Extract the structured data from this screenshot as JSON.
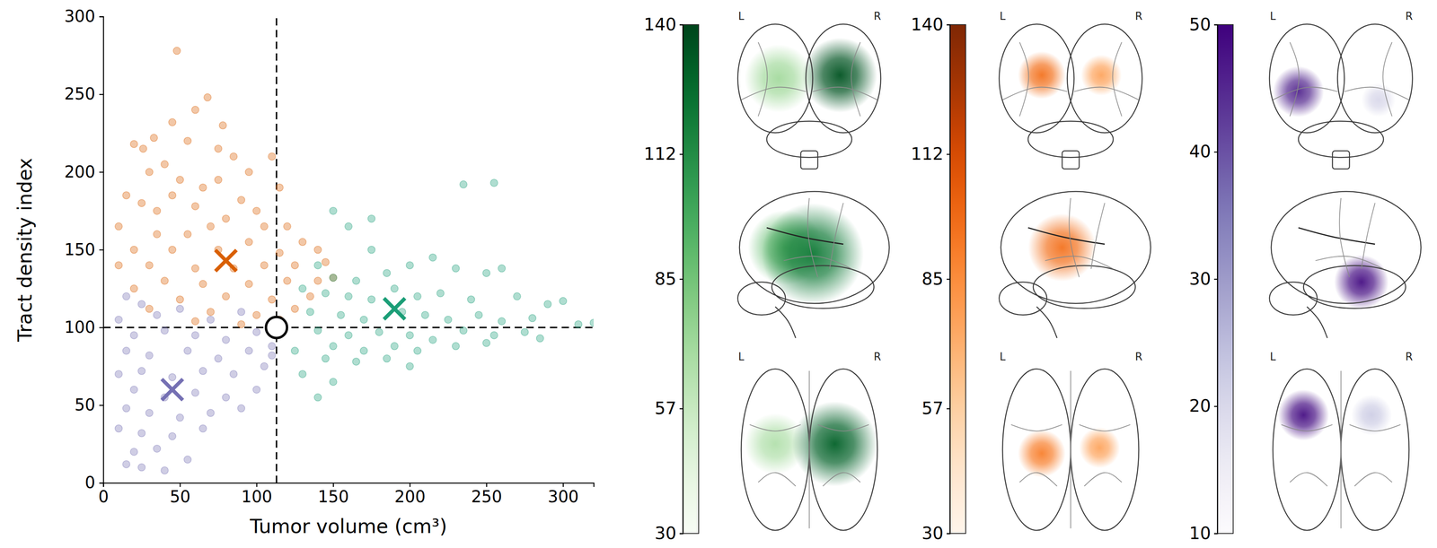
{
  "chart_data": [
    {
      "type": "scatter",
      "x_label": "Tumor volume (cm³)",
      "y_label": "Tract density index",
      "xlim": [
        0,
        320
      ],
      "xticks": [
        0,
        50,
        100,
        150,
        200,
        250,
        300
      ],
      "ylim": [
        0,
        300
      ],
      "yticks": [
        0,
        50,
        100,
        150,
        200,
        250,
        300
      ],
      "grid": false,
      "series": [
        {
          "color": "#d95f02",
          "marker": "circle",
          "x": [
            48,
            68,
            60,
            45,
            33,
            20,
            26,
            55,
            78,
            75,
            85,
            40,
            30,
            50,
            65,
            45,
            15,
            25,
            60,
            90,
            100,
            80,
            70,
            105,
            110,
            115,
            120,
            10,
            35,
            55,
            95,
            130,
            20,
            45,
            75,
            115,
            140,
            10,
            30,
            60,
            85,
            105,
            125,
            145,
            40,
            65,
            95,
            120,
            20,
            50,
            80,
            110,
            135,
            30,
            70,
            100,
            125,
            60,
            90,
            115,
            140,
            150,
            75,
            95,
            35
          ],
          "values": [
            278,
            248,
            240,
            232,
            222,
            218,
            215,
            220,
            230,
            215,
            210,
            205,
            200,
            195,
            190,
            185,
            185,
            180,
            178,
            182,
            175,
            170,
            165,
            165,
            210,
            190,
            165,
            165,
            160,
            160,
            155,
            155,
            150,
            150,
            150,
            148,
            150,
            140,
            140,
            138,
            138,
            140,
            140,
            142,
            130,
            128,
            128,
            130,
            125,
            118,
            120,
            118,
            120,
            112,
            110,
            108,
            112,
            104,
            102,
            105,
            130,
            132,
            195,
            200,
            175
          ]
        },
        {
          "color": "#1b9e77",
          "marker": "circle",
          "x": [
            150,
            235,
            255,
            160,
            175,
            140,
            150,
            165,
            185,
            200,
            215,
            230,
            250,
            260,
            130,
            145,
            160,
            175,
            190,
            205,
            220,
            240,
            270,
            290,
            300,
            135,
            155,
            170,
            195,
            210,
            225,
            245,
            260,
            280,
            310,
            320,
            140,
            160,
            180,
            200,
            215,
            235,
            255,
            275,
            285,
            150,
            170,
            190,
            205,
            230,
            250,
            145,
            165,
            185,
            200,
            130,
            150,
            140,
            125,
            175
          ],
          "values": [
            175,
            192,
            193,
            165,
            150,
            140,
            132,
            130,
            135,
            140,
            145,
            138,
            135,
            138,
            125,
            122,
            120,
            118,
            125,
            120,
            122,
            118,
            120,
            115,
            117,
            110,
            108,
            105,
            110,
            108,
            105,
            108,
            104,
            106,
            102,
            103,
            98,
            95,
            97,
            95,
            92,
            98,
            95,
            97,
            93,
            88,
            85,
            88,
            85,
            88,
            90,
            80,
            78,
            80,
            75,
            70,
            65,
            55,
            85,
            170
          ]
        },
        {
          "color": "#7570b3",
          "marker": "circle",
          "x": [
            15,
            25,
            10,
            35,
            50,
            70,
            90,
            110,
            20,
            40,
            60,
            80,
            100,
            15,
            30,
            55,
            75,
            95,
            110,
            10,
            25,
            45,
            65,
            85,
            105,
            20,
            40,
            60,
            80,
            100,
            15,
            30,
            50,
            70,
            90,
            10,
            25,
            45,
            65,
            20,
            35,
            15,
            25,
            40,
            55
          ],
          "values": [
            120,
            115,
            105,
            108,
            112,
            105,
            110,
            88,
            95,
            98,
            95,
            92,
            97,
            85,
            82,
            85,
            80,
            85,
            82,
            70,
            72,
            68,
            72,
            70,
            75,
            60,
            55,
            58,
            55,
            60,
            48,
            45,
            42,
            45,
            48,
            35,
            32,
            30,
            35,
            20,
            22,
            12,
            10,
            8,
            15
          ]
        },
        {
          "marker": "x",
          "colors": [
            "#d95f02",
            "#1b9e77",
            "#7570b3"
          ],
          "x": [
            80,
            190,
            45
          ],
          "values": [
            143,
            112,
            60
          ]
        }
      ],
      "reference": {
        "x": 113,
        "y": 100,
        "line_style": "dashed",
        "marker": "ring"
      }
    },
    {
      "type": "heatmap",
      "color": "Greens",
      "color_range": [
        30,
        140
      ],
      "color_ticks": [
        30,
        57,
        85,
        112,
        140
      ],
      "views": [
        {
          "labels": [
            "L",
            "R"
          ],
          "spots": [
            {
              "x": 0.68,
              "y": 0.4,
              "size": 0.22,
              "value": 135
            },
            {
              "x": 0.32,
              "y": 0.42,
              "size": 0.2,
              "value": 70
            }
          ]
        },
        {
          "spots": [
            {
              "x": 0.36,
              "y": 0.42,
              "size": 0.22,
              "value": 90
            },
            {
              "x": 0.52,
              "y": 0.46,
              "size": 0.3,
              "value": 120
            }
          ]
        },
        {
          "labels": [
            "L",
            "R"
          ],
          "spots": [
            {
              "x": 0.3,
              "y": 0.5,
              "size": 0.18,
              "value": 65
            },
            {
              "x": 0.65,
              "y": 0.5,
              "size": 0.25,
              "value": 130
            }
          ]
        }
      ]
    },
    {
      "type": "heatmap",
      "color": "Oranges",
      "color_range": [
        30,
        140
      ],
      "color_ticks": [
        30,
        57,
        85,
        112,
        140
      ],
      "views": [
        {
          "labels": [
            "L",
            "R"
          ],
          "spots": [
            {
              "x": 0.33,
              "y": 0.4,
              "size": 0.14,
              "value": 95
            },
            {
              "x": 0.68,
              "y": 0.4,
              "size": 0.12,
              "value": 75
            }
          ]
        },
        {
          "spots": [
            {
              "x": 0.45,
              "y": 0.42,
              "size": 0.2,
              "value": 95
            }
          ]
        },
        {
          "labels": [
            "L",
            "R"
          ],
          "spots": [
            {
              "x": 0.33,
              "y": 0.55,
              "size": 0.14,
              "value": 90
            },
            {
              "x": 0.67,
              "y": 0.52,
              "size": 0.12,
              "value": 75
            }
          ]
        }
      ]
    },
    {
      "type": "heatmap",
      "color": "Purples",
      "color_range": [
        10,
        50
      ],
      "color_ticks": [
        10,
        20,
        30,
        40,
        50
      ],
      "views": [
        {
          "labels": [
            "L",
            "R"
          ],
          "spots": [
            {
              "x": 0.25,
              "y": 0.5,
              "size": 0.15,
              "value": 45
            },
            {
              "x": 0.72,
              "y": 0.55,
              "size": 0.1,
              "value": 20
            }
          ]
        },
        {
          "spots": [
            {
              "x": 0.62,
              "y": 0.63,
              "size": 0.16,
              "value": 48
            }
          ]
        },
        {
          "labels": [
            "L",
            "R"
          ],
          "spots": [
            {
              "x": 0.28,
              "y": 0.35,
              "size": 0.15,
              "value": 48
            },
            {
              "x": 0.68,
              "y": 0.35,
              "size": 0.12,
              "value": 22
            }
          ]
        }
      ]
    }
  ]
}
